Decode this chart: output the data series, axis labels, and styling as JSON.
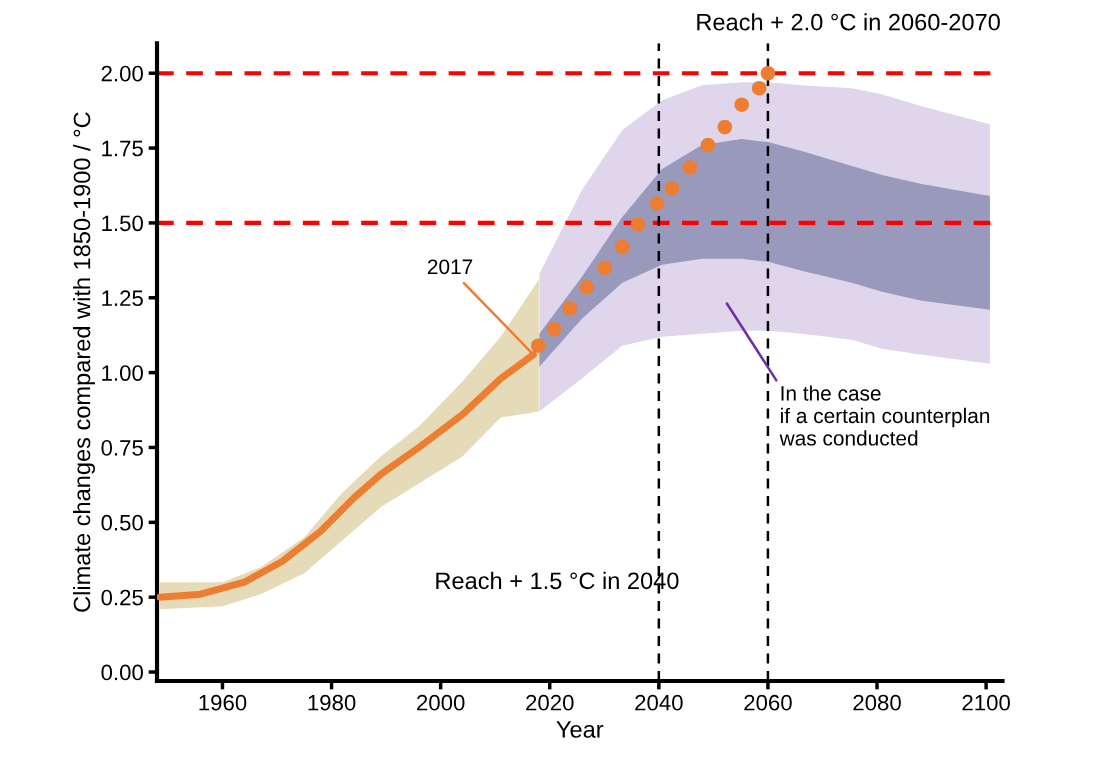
{
  "chart_data": {
    "type": "line",
    "xlabel": "Year",
    "ylabel": "Climate changes compared with 1850-1900 / °C",
    "xlim": [
      1948,
      2103
    ],
    "ylim": [
      -0.03,
      2.1
    ],
    "xticks": [
      1960,
      1980,
      2000,
      2020,
      2040,
      2060,
      2080,
      2100
    ],
    "yticks": [
      {
        "value": 0,
        "label": "0.00"
      },
      {
        "value": 0.25,
        "label": "0.25"
      },
      {
        "value": 0.5,
        "label": "0.50"
      },
      {
        "value": 0.75,
        "label": "0.75"
      },
      {
        "value": 1.0,
        "label": "1.00"
      },
      {
        "value": 1.25,
        "label": "1.25"
      },
      {
        "value": 1.5,
        "label": "1.50"
      },
      {
        "value": 1.75,
        "label": "1.75"
      },
      {
        "value": 2.0,
        "label": "2.00"
      }
    ],
    "series": [
      {
        "type": "area",
        "color": "#e0d6ec",
        "x": [
          2018.1,
          2025.9,
          2033.3,
          2040.6,
          2047.9,
          2055.2,
          2060,
          2066.2,
          2075.4,
          2080.9,
          2088.2,
          2100.7
        ],
        "values": [
          null,
          null,
          null,
          null,
          null,
          null,
          null,
          null,
          null,
          null,
          null,
          null
        ],
        "upper": [
          1.33,
          1.61,
          1.81,
          1.91,
          1.96,
          1.97,
          1.97,
          1.96,
          1.95,
          1.93,
          1.89,
          1.83
        ],
        "lower": [
          0.87,
          0.98,
          1.09,
          1.12,
          1.13,
          1.14,
          1.14,
          1.13,
          1.11,
          1.08,
          1.06,
          1.03
        ]
      },
      {
        "type": "area",
        "color": "#9999bb",
        "x": [
          2018.1,
          2025.9,
          2033.3,
          2040.6,
          2047.9,
          2055.2,
          2060,
          2066.2,
          2075.4,
          2080.9,
          2088.2,
          2100.7
        ],
        "values": [
          null,
          null,
          null,
          null,
          null,
          null,
          null,
          null,
          null,
          null,
          null,
          null
        ],
        "upper": [
          1.13,
          1.32,
          1.52,
          1.68,
          1.76,
          1.78,
          1.77,
          1.74,
          1.69,
          1.66,
          1.63,
          1.59
        ],
        "lower": [
          1.02,
          1.18,
          1.3,
          1.36,
          1.38,
          1.38,
          1.37,
          1.34,
          1.3,
          1.27,
          1.24,
          1.21
        ]
      },
      {
        "type": "area",
        "color": "#e6dbb8",
        "x": [
          1948.5,
          1960,
          1967,
          1975,
          1982,
          1989,
          1996,
          2004,
          2011,
          2018
        ],
        "values": [
          null,
          null,
          null,
          null,
          null,
          null,
          null,
          null,
          null,
          null
        ],
        "upper": [
          0.3,
          0.3,
          0.35,
          0.45,
          0.6,
          0.72,
          0.82,
          0.97,
          1.12,
          1.31
        ],
        "lower": [
          0.21,
          0.22,
          0.26,
          0.33,
          0.44,
          0.55,
          0.63,
          0.72,
          0.85,
          0.87
        ]
      },
      {
        "color": "#ed7d31",
        "x": [
          1948.5,
          1956,
          1964,
          1971,
          1978,
          1984,
          1989,
          1996,
          2004,
          2011,
          2017
        ],
        "values": [
          0.25,
          0.26,
          0.3,
          0.37,
          0.47,
          0.58,
          0.66,
          0.75,
          0.86,
          0.98,
          1.06
        ]
      },
      {
        "type": "scatter",
        "color": "#ed7d31",
        "marker": "circle",
        "x": [
          2017.9,
          2020.8,
          2023.7,
          2026.8,
          2030.1,
          2033.3,
          2036.2,
          2039.7,
          2042.4,
          2045.7,
          2049.0,
          2052.1,
          2055.2,
          2058.4,
          2060.0
        ],
        "values": [
          1.09,
          1.145,
          1.215,
          1.285,
          1.35,
          1.42,
          1.495,
          1.565,
          1.615,
          1.685,
          1.76,
          1.82,
          1.895,
          1.95,
          2.0
        ]
      }
    ],
    "ref_lines": [
      {
        "axis": "y",
        "value": 2.0,
        "color": "#ff0000",
        "line_style": "dashed"
      },
      {
        "axis": "y",
        "value": 1.5,
        "color": "#ff0000",
        "line_style": "dashed"
      },
      {
        "axis": "x",
        "value": 2040,
        "color": "#000000",
        "line_style": "dashed"
      },
      {
        "axis": "x",
        "value": 2060,
        "color": "#000000",
        "line_style": "dashed"
      }
    ],
    "annotations": [
      "Reach + 2.0 °C in 2060-2070",
      "Reach + 1.5 °C in 2040",
      {
        "text": "2017",
        "x": 2017,
        "y": 1.06
      },
      "In the case\nif a certain counterplan\nwas conducted"
    ]
  }
}
